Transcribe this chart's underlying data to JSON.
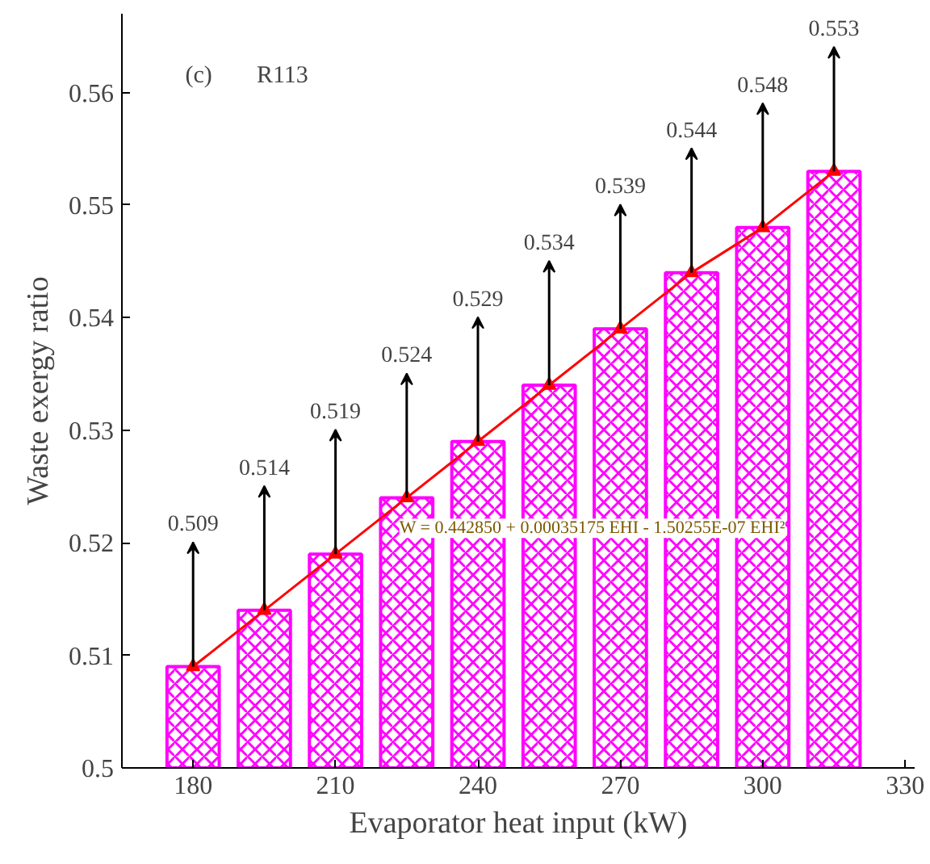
{
  "chart_data": {
    "type": "bar",
    "xlabel": "Evaporator heat input (kW)",
    "ylabel": "Waste exergy ratio",
    "x": [
      180,
      195,
      210,
      225,
      240,
      255,
      270,
      285,
      300,
      315
    ],
    "series": [
      {
        "color": "#ff00ff",
        "values": [
          0.509,
          0.514,
          0.519,
          0.524,
          0.529,
          0.534,
          0.539,
          0.544,
          0.548,
          0.553
        ],
        "value_labels": [
          "0.509",
          "0.514",
          "0.519",
          "0.524",
          "0.529",
          "0.534",
          "0.539",
          "0.544",
          "0.548",
          "0.553"
        ]
      },
      {
        "type": "line",
        "color": "#ff0000",
        "marker": "triangle",
        "x": [
          180,
          195,
          210,
          225,
          240,
          255,
          270,
          285,
          300,
          315
        ],
        "values": [
          0.509,
          0.514,
          0.519,
          0.524,
          0.529,
          0.534,
          0.539,
          0.544,
          0.548,
          0.553
        ]
      }
    ],
    "annotations": [
      "(c)",
      "R113",
      "W = 0.442850 + 0.00035175 EHI - 1.50255E-07 EHI²"
    ],
    "xlim": [
      165,
      332
    ],
    "ylim": [
      0.5,
      0.567
    ],
    "xticks": [
      180,
      210,
      240,
      270,
      300,
      330
    ],
    "yticks": [
      {
        "value": 0.5,
        "label": "0.5"
      },
      0.51,
      0.52,
      0.53,
      0.54,
      0.55,
      0.56
    ],
    "grid": false
  }
}
